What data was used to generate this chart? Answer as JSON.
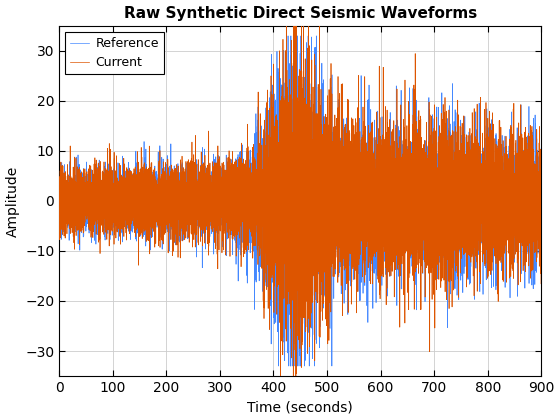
{
  "title": "Raw Synthetic Direct Seismic Waveforms",
  "xlabel": "Time (seconds)",
  "ylabel": "Amplitude",
  "xlim": [
    0,
    900
  ],
  "ylim": [
    -35,
    35
  ],
  "yticks": [
    -30,
    -20,
    -10,
    0,
    10,
    20,
    30
  ],
  "xticks": [
    0,
    100,
    200,
    300,
    400,
    500,
    600,
    700,
    800,
    900
  ],
  "reference_color": "#4488FF",
  "current_color": "#DD5500",
  "legend_labels": [
    "Reference",
    "Current"
  ],
  "background_color": "#FFFFFF",
  "grid_color": "#CCCCCC",
  "seed_ref": 7,
  "seed_cur": 13,
  "n_samples": 9000
}
